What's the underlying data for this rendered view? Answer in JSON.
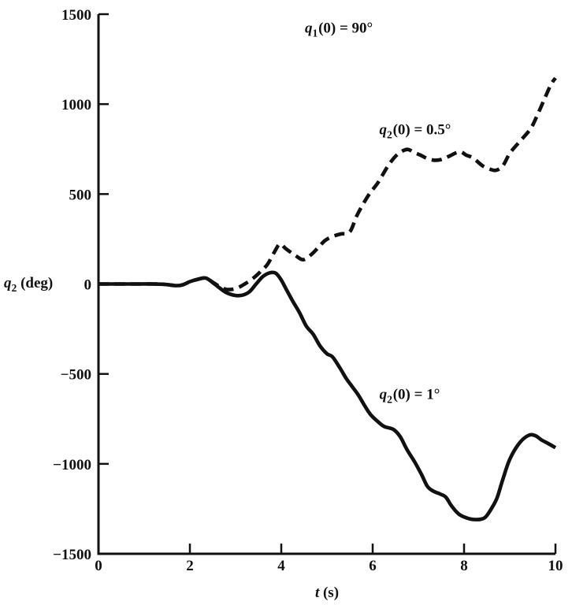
{
  "figure": {
    "background": "#ffffff",
    "ink_color": "#111111"
  },
  "chart_data": {
    "type": "line",
    "title": "",
    "grid": false,
    "legend_position": "none",
    "xlabel": {
      "base": "t",
      "sub": "",
      "suffix": " (s)"
    },
    "ylabel": {
      "base": "q",
      "sub": "2",
      "suffix": " (deg)"
    },
    "xlim": [
      0,
      10
    ],
    "ylim": [
      -1500,
      1500
    ],
    "x_ticks": {
      "values": [
        0,
        2,
        4,
        6,
        8,
        10
      ],
      "labels": [
        "0",
        "2",
        "4",
        "6",
        "8",
        "10"
      ]
    },
    "y_ticks": {
      "values": [
        1500,
        1000,
        500,
        0,
        -500,
        -1000,
        -1500
      ],
      "labels": [
        "1500",
        "1000",
        "500",
        "0",
        "−500",
        "−1000",
        "−1500"
      ]
    },
    "annotations": [
      {
        "name": "initial-condition-q1",
        "base": "q",
        "sub": "1",
        "suffix": "(0) = 90°",
        "t": 5.26,
        "q": 1413
      },
      {
        "name": "dashed-curve-label",
        "base": "q",
        "sub": "2",
        "suffix": "(0) = 0.5°",
        "t": 6.93,
        "q": 848
      },
      {
        "name": "solid-curve-label",
        "base": "q",
        "sub": "2",
        "suffix": "(0) = 1°",
        "t": 6.81,
        "q": -626
      }
    ],
    "series": [
      {
        "name": "q2(0) = 1°",
        "style": "solid",
        "color": "#111111",
        "points": [
          [
            0,
            0
          ],
          [
            0.3,
            0
          ],
          [
            0.6,
            0
          ],
          [
            0.9,
            0
          ],
          [
            1.2,
            0
          ],
          [
            1.45,
            -2
          ],
          [
            1.7,
            -9
          ],
          [
            1.85,
            -4
          ],
          [
            2.0,
            13
          ],
          [
            2.2,
            28
          ],
          [
            2.35,
            33
          ],
          [
            2.5,
            8
          ],
          [
            2.65,
            -22
          ],
          [
            2.8,
            -48
          ],
          [
            3.0,
            -64
          ],
          [
            3.15,
            -62
          ],
          [
            3.3,
            -44
          ],
          [
            3.45,
            0
          ],
          [
            3.6,
            42
          ],
          [
            3.75,
            62
          ],
          [
            3.88,
            60
          ],
          [
            4.0,
            22
          ],
          [
            4.12,
            -35
          ],
          [
            4.25,
            -95
          ],
          [
            4.4,
            -160
          ],
          [
            4.55,
            -235
          ],
          [
            4.7,
            -280
          ],
          [
            4.85,
            -345
          ],
          [
            5.0,
            -388
          ],
          [
            5.12,
            -405
          ],
          [
            5.28,
            -465
          ],
          [
            5.42,
            -525
          ],
          [
            5.55,
            -570
          ],
          [
            5.68,
            -615
          ],
          [
            5.82,
            -675
          ],
          [
            5.95,
            -725
          ],
          [
            6.1,
            -762
          ],
          [
            6.25,
            -792
          ],
          [
            6.45,
            -808
          ],
          [
            6.6,
            -848
          ],
          [
            6.75,
            -920
          ],
          [
            6.92,
            -990
          ],
          [
            7.07,
            -1060
          ],
          [
            7.2,
            -1126
          ],
          [
            7.33,
            -1152
          ],
          [
            7.48,
            -1168
          ],
          [
            7.6,
            -1185
          ],
          [
            7.73,
            -1235
          ],
          [
            7.88,
            -1278
          ],
          [
            8.05,
            -1300
          ],
          [
            8.25,
            -1310
          ],
          [
            8.45,
            -1300
          ],
          [
            8.6,
            -1248
          ],
          [
            8.72,
            -1190
          ],
          [
            8.85,
            -1085
          ],
          [
            9.0,
            -975
          ],
          [
            9.2,
            -888
          ],
          [
            9.4,
            -843
          ],
          [
            9.55,
            -842
          ],
          [
            9.7,
            -868
          ],
          [
            9.85,
            -888
          ],
          [
            10.0,
            -910
          ]
        ]
      },
      {
        "name": "q2(0) = 0.5°",
        "style": "dashed",
        "color": "#111111",
        "points": [
          [
            0,
            0
          ],
          [
            0.3,
            0
          ],
          [
            0.6,
            0
          ],
          [
            0.9,
            0
          ],
          [
            1.2,
            0
          ],
          [
            1.45,
            -2
          ],
          [
            1.7,
            -9
          ],
          [
            1.85,
            -4
          ],
          [
            2.0,
            13
          ],
          [
            2.2,
            28
          ],
          [
            2.35,
            33
          ],
          [
            2.5,
            10
          ],
          [
            2.65,
            -14
          ],
          [
            2.8,
            -30
          ],
          [
            3.0,
            -26
          ],
          [
            3.2,
            0
          ],
          [
            3.4,
            35
          ],
          [
            3.55,
            70
          ],
          [
            3.7,
            110
          ],
          [
            3.85,
            178
          ],
          [
            3.97,
            222
          ],
          [
            4.1,
            196
          ],
          [
            4.3,
            160
          ],
          [
            4.48,
            135
          ],
          [
            4.65,
            162
          ],
          [
            4.8,
            200
          ],
          [
            4.95,
            240
          ],
          [
            5.1,
            262
          ],
          [
            5.3,
            278
          ],
          [
            5.5,
            290
          ],
          [
            5.66,
            383
          ],
          [
            5.9,
            490
          ],
          [
            6.12,
            565
          ],
          [
            6.35,
            662
          ],
          [
            6.55,
            722
          ],
          [
            6.75,
            748
          ],
          [
            6.9,
            732
          ],
          [
            7.05,
            716
          ],
          [
            7.2,
            697
          ],
          [
            7.35,
            688
          ],
          [
            7.5,
            692
          ],
          [
            7.67,
            710
          ],
          [
            7.9,
            735
          ],
          [
            8.05,
            716
          ],
          [
            8.2,
            700
          ],
          [
            8.4,
            658
          ],
          [
            8.55,
            640
          ],
          [
            8.7,
            632
          ],
          [
            8.85,
            658
          ],
          [
            9.0,
            726
          ],
          [
            9.2,
            787
          ],
          [
            9.45,
            861
          ],
          [
            9.6,
            937
          ],
          [
            9.75,
            1023
          ],
          [
            9.9,
            1108
          ],
          [
            10.0,
            1145
          ]
        ]
      }
    ]
  }
}
